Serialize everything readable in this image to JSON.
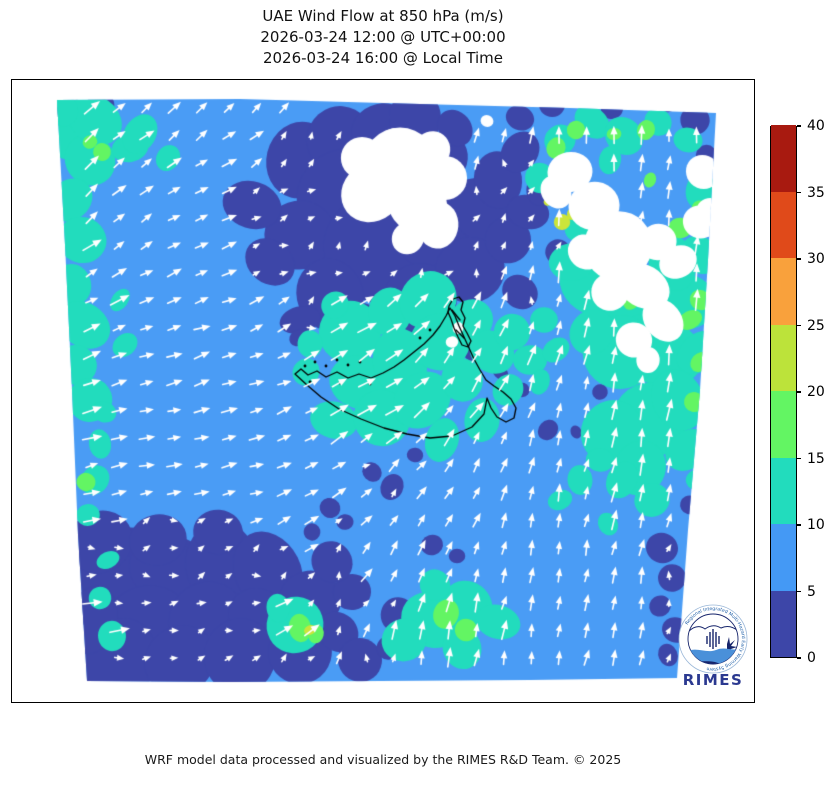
{
  "title": {
    "line1": "UAE Wind Flow at 850 hPa (m/s)",
    "line2": "2026-03-24 12:00 @ UTC+00:00",
    "line3": "2026-03-24 16:00 @ Local Time"
  },
  "footer": {
    "credit": "WRF model data processed and visualized by the RIMES R&D Team. © 2025"
  },
  "logo": {
    "name": "RIMES",
    "ring_text": "Regional Integrated Multi-Hazard Early Warning System",
    "accent": "#2b3990"
  },
  "colorbar": {
    "min": 0,
    "max": 40,
    "ticks": [
      0,
      5,
      10,
      15,
      20,
      25,
      30,
      35,
      40
    ],
    "segment_colors_bottom_to_top": [
      "#3d46a8",
      "#4499f5",
      "#22dcbd",
      "#63f563",
      "#bce33a",
      "#f9a13c",
      "#e04a1a",
      "#a81a10"
    ]
  },
  "map_colors": {
    "background": "#ffffff",
    "speed_0_5": "#3d46a8",
    "speed_5_10": "#4a9cf5",
    "speed_10_15": "#22dcbd",
    "speed_15_20": "#63f563",
    "speed_20_25": "#cbe53a",
    "arrow": "#ffffff",
    "coastline": "#000000"
  },
  "chart_data": {
    "type": "heatmap",
    "subtype": "wind_flow_map_with_quiver_arrows",
    "region": "UAE and surrounding Gulf region",
    "variable": "Wind Flow at 850 hPa",
    "units": "m/s",
    "valid_utc": "2026-03-24 12:00 @ UTC+00:00",
    "valid_local": "2026-03-24 16:00 @ Local Time",
    "legend_position": "right",
    "colorbar_levels": [
      0,
      5,
      10,
      15,
      20,
      25,
      30,
      35,
      40
    ],
    "wind_speed_grid_ms": [
      [
        12,
        7,
        3,
        3,
        7,
        13,
        17,
        13
      ],
      [
        12,
        7,
        3,
        3,
        7,
        22,
        13,
        13
      ],
      [
        12,
        7,
        3,
        3,
        7,
        12,
        13,
        17
      ],
      [
        7,
        7,
        7,
        12,
        12,
        12,
        13,
        13
      ],
      [
        12,
        7,
        7,
        12,
        12,
        7,
        13,
        7
      ],
      [
        7,
        3,
        7,
        7,
        12,
        12,
        7,
        7
      ],
      [
        3,
        3,
        3,
        12,
        16,
        12,
        3,
        7
      ],
      [
        3,
        3,
        7,
        7,
        7,
        7,
        7,
        7
      ]
    ],
    "wind_direction_deg_grid": [
      [
        45,
        38,
        65,
        85,
        88
      ],
      [
        40,
        25,
        45,
        82,
        86
      ],
      [
        15,
        15,
        30,
        75,
        82
      ],
      [
        12,
        8,
        55,
        78,
        78
      ],
      [
        10,
        6,
        85,
        82,
        72
      ]
    ]
  }
}
